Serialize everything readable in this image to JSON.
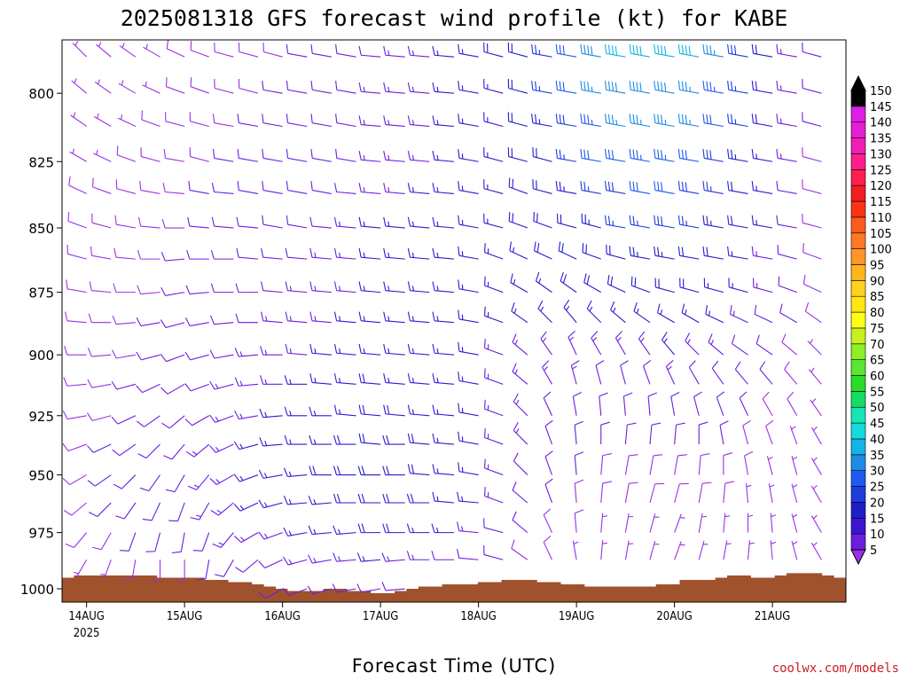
{
  "chart_data": {
    "type": "wind-barb time-height",
    "title": "2025081318 GFS forecast wind profile (kt) for KABE",
    "xlabel": "Forecast Time (UTC)",
    "ylabel": "",
    "credit": "coolwx.com/models",
    "x_ticks": [
      "14AUG",
      "15AUG",
      "16AUG",
      "17AUG",
      "18AUG",
      "19AUG",
      "20AUG",
      "21AUG"
    ],
    "x_subtick": "2025",
    "y_ticks": [
      800,
      825,
      850,
      875,
      900,
      925,
      950,
      975,
      1000
    ],
    "y_range_hpa": [
      781,
      1006
    ],
    "y_scale": "log-pressure",
    "x_range_hours": [
      -6,
      186
    ],
    "colorbar": {
      "levels": [
        5,
        10,
        15,
        20,
        25,
        30,
        35,
        40,
        45,
        50,
        55,
        60,
        65,
        70,
        75,
        80,
        85,
        90,
        95,
        100,
        105,
        110,
        115,
        120,
        125,
        130,
        135,
        140,
        145,
        150
      ],
      "colors": [
        "#9a30e8",
        "#6a1ee0",
        "#3c14d2",
        "#1e1ec8",
        "#1e3cdc",
        "#1e5af0",
        "#1e8ce6",
        "#14b4e6",
        "#14dcdc",
        "#14e6b4",
        "#14dc64",
        "#28dc28",
        "#5ae632",
        "#8cf028",
        "#c8f01e",
        "#ffff14",
        "#ffe614",
        "#ffd21e",
        "#ffb41e",
        "#ff9628",
        "#ff7828",
        "#ff5a1e",
        "#ff3214",
        "#f01e1e",
        "#ff1e50",
        "#ff1e8c",
        "#f01eb4",
        "#e61ed2",
        "#dc1ee6",
        "#000000"
      ]
    },
    "surface_pressure_hpa": [
      995,
      994,
      994,
      994,
      994,
      994,
      994,
      994,
      995,
      995,
      995,
      995,
      996,
      996,
      997,
      997,
      998,
      999,
      1000,
      1001,
      1001,
      1001,
      1000,
      1000,
      1001,
      1001,
      1002,
      1002,
      1001,
      1000,
      999,
      999,
      998,
      998,
      998,
      997,
      997,
      996,
      996,
      996,
      997,
      997,
      998,
      998,
      999,
      999,
      999,
      999,
      999,
      999,
      998,
      998,
      996,
      996,
      996,
      995,
      994,
      994,
      995,
      995,
      994,
      993,
      993,
      993,
      994,
      995
    ],
    "surface_time_range_hours": [
      -6,
      186
    ],
    "wind_columns_hours": [
      -6,
      0,
      6,
      12,
      18,
      24,
      30,
      36,
      42,
      48,
      54,
      60,
      66,
      72,
      78,
      84,
      90,
      96,
      102,
      108,
      114,
      120,
      126,
      132,
      138,
      144,
      150,
      156,
      162,
      168,
      174,
      180
    ],
    "wind_levels_hpa": [
      1000,
      987,
      975,
      962,
      950,
      937,
      925,
      912,
      900,
      887,
      875,
      862,
      850,
      837,
      825,
      812,
      800,
      787
    ],
    "wind_speed_kt": [
      [
        5,
        6,
        8,
        8,
        8,
        9,
        9,
        9,
        9,
        9,
        8,
        8,
        7,
        7,
        6,
        6,
        5,
        5
      ],
      [
        5,
        6,
        8,
        9,
        9,
        9,
        9,
        9,
        9,
        9,
        9,
        9,
        8,
        8,
        7,
        7,
        6,
        6
      ],
      [
        6,
        7,
        9,
        10,
        10,
        10,
        9,
        9,
        9,
        9,
        9,
        8,
        8,
        8,
        7,
        7,
        7,
        6
      ],
      [
        6,
        8,
        10,
        10,
        11,
        11,
        10,
        10,
        9,
        9,
        9,
        9,
        8,
        8,
        8,
        7,
        7,
        7
      ],
      [
        7,
        8,
        10,
        11,
        11,
        11,
        11,
        10,
        10,
        10,
        9,
        9,
        9,
        8,
        8,
        8,
        7,
        7
      ],
      [
        8,
        9,
        11,
        12,
        12,
        12,
        11,
        11,
        11,
        10,
        10,
        10,
        9,
        9,
        9,
        8,
        8,
        8
      ],
      [
        8,
        10,
        12,
        13,
        13,
        13,
        12,
        12,
        11,
        11,
        11,
        10,
        10,
        10,
        9,
        9,
        9,
        8
      ],
      [
        9,
        11,
        13,
        14,
        14,
        14,
        13,
        13,
        12,
        12,
        11,
        11,
        11,
        10,
        10,
        9,
        9,
        9
      ],
      [
        10,
        12,
        14,
        15,
        15,
        15,
        14,
        14,
        13,
        12,
        12,
        11,
        11,
        10,
        10,
        10,
        9,
        9
      ],
      [
        10,
        12,
        14,
        16,
        16,
        16,
        15,
        14,
        14,
        13,
        12,
        12,
        11,
        11,
        10,
        10,
        10,
        9
      ],
      [
        11,
        13,
        15,
        17,
        17,
        16,
        16,
        15,
        14,
        14,
        13,
        12,
        12,
        11,
        11,
        10,
        10,
        10
      ],
      [
        11,
        13,
        15,
        17,
        18,
        17,
        16,
        16,
        15,
        14,
        14,
        13,
        12,
        12,
        11,
        11,
        10,
        10
      ],
      [
        12,
        14,
        16,
        18,
        18,
        18,
        17,
        16,
        15,
        15,
        14,
        13,
        13,
        12,
        12,
        11,
        11,
        10
      ],
      [
        12,
        15,
        19,
        20,
        20,
        20,
        19,
        18,
        17,
        16,
        16,
        15,
        15,
        14,
        14,
        13,
        13,
        12
      ],
      [
        11,
        14,
        18,
        19,
        19,
        19,
        18,
        17,
        17,
        16,
        15,
        15,
        15,
        14,
        14,
        14,
        13,
        13
      ],
      [
        10,
        13,
        16,
        18,
        18,
        18,
        17,
        16,
        16,
        15,
        15,
        15,
        15,
        15,
        14,
        14,
        14,
        14
      ],
      [
        9,
        12,
        15,
        16,
        16,
        16,
        16,
        15,
        15,
        15,
        15,
        15,
        15,
        15,
        15,
        15,
        15,
        15
      ],
      [
        8,
        11,
        13,
        15,
        15,
        15,
        15,
        15,
        15,
        15,
        15,
        15,
        16,
        16,
        16,
        16,
        16,
        16
      ],
      [
        8,
        10,
        12,
        14,
        14,
        14,
        14,
        14,
        14,
        15,
        15,
        16,
        17,
        17,
        17,
        17,
        17,
        18
      ],
      [
        7,
        9,
        11,
        12,
        12,
        13,
        13,
        13,
        14,
        15,
        16,
        17,
        18,
        19,
        19,
        20,
        20,
        21
      ],
      [
        6,
        8,
        9,
        10,
        11,
        11,
        12,
        13,
        14,
        15,
        16,
        18,
        19,
        21,
        22,
        24,
        25,
        27
      ],
      [
        6,
        7,
        8,
        9,
        10,
        11,
        12,
        13,
        14,
        16,
        18,
        20,
        22,
        24,
        26,
        28,
        30,
        32
      ],
      [
        5,
        6,
        7,
        8,
        9,
        10,
        11,
        12,
        14,
        16,
        18,
        21,
        24,
        27,
        30,
        33,
        36,
        38
      ],
      [
        5,
        6,
        7,
        8,
        9,
        10,
        11,
        12,
        14,
        16,
        19,
        22,
        26,
        29,
        32,
        35,
        38,
        40
      ],
      [
        5,
        6,
        7,
        8,
        9,
        10,
        11,
        12,
        14,
        17,
        20,
        23,
        27,
        30,
        33,
        36,
        39,
        41
      ],
      [
        5,
        6,
        7,
        8,
        9,
        10,
        12,
        13,
        15,
        17,
        20,
        24,
        28,
        31,
        34,
        37,
        39,
        42
      ],
      [
        5,
        6,
        7,
        8,
        9,
        10,
        11,
        12,
        14,
        16,
        19,
        22,
        26,
        29,
        32,
        35,
        37,
        40
      ],
      [
        5,
        6,
        7,
        8,
        9,
        10,
        11,
        12,
        13,
        15,
        17,
        20,
        23,
        26,
        28,
        31,
        33,
        35
      ],
      [
        5,
        6,
        6,
        7,
        8,
        9,
        10,
        11,
        12,
        13,
        15,
        17,
        19,
        21,
        23,
        25,
        27,
        29
      ],
      [
        5,
        5,
        6,
        7,
        7,
        8,
        9,
        10,
        11,
        12,
        13,
        14,
        15,
        16,
        17,
        18,
        19,
        20
      ],
      [
        5,
        5,
        6,
        6,
        7,
        7,
        8,
        8,
        9,
        10,
        10,
        11,
        12,
        12,
        13,
        13,
        14,
        14
      ],
      [
        5,
        5,
        5,
        6,
        6,
        6,
        7,
        7,
        7,
        8,
        8,
        8,
        9,
        9,
        9,
        10,
        10,
        10
      ]
    ],
    "wind_dir_deg": [
      [
        210,
        220,
        230,
        240,
        250,
        255,
        260,
        265,
        270,
        275,
        280,
        285,
        290,
        295,
        300,
        305,
        310,
        315
      ],
      [
        200,
        210,
        220,
        230,
        240,
        250,
        260,
        265,
        270,
        275,
        280,
        285,
        290,
        295,
        300,
        305,
        310,
        315
      ],
      [
        190,
        200,
        210,
        225,
        235,
        245,
        255,
        260,
        265,
        270,
        275,
        280,
        285,
        290,
        295,
        300,
        305,
        310
      ],
      [
        180,
        190,
        200,
        215,
        225,
        235,
        245,
        255,
        260,
        265,
        270,
        275,
        280,
        285,
        290,
        295,
        300,
        305
      ],
      [
        170,
        180,
        195,
        205,
        215,
        225,
        235,
        245,
        255,
        260,
        265,
        270,
        275,
        280,
        285,
        290,
        295,
        300
      ],
      [
        170,
        180,
        190,
        200,
        210,
        220,
        230,
        240,
        250,
        255,
        260,
        265,
        270,
        275,
        280,
        285,
        290,
        295
      ],
      [
        180,
        190,
        200,
        210,
        220,
        230,
        240,
        250,
        255,
        260,
        265,
        270,
        275,
        280,
        285,
        285,
        290,
        290
      ],
      [
        200,
        210,
        220,
        230,
        240,
        245,
        250,
        255,
        260,
        265,
        270,
        270,
        275,
        275,
        280,
        280,
        285,
        285
      ],
      [
        220,
        230,
        240,
        245,
        250,
        255,
        260,
        265,
        265,
        270,
        270,
        275,
        275,
        280,
        280,
        280,
        285,
        285
      ],
      [
        240,
        245,
        250,
        255,
        260,
        265,
        265,
        270,
        270,
        275,
        275,
        275,
        280,
        280,
        280,
        280,
        280,
        285
      ],
      [
        250,
        255,
        260,
        265,
        265,
        270,
        270,
        270,
        275,
        275,
        275,
        275,
        280,
        280,
        280,
        280,
        280,
        280
      ],
      [
        255,
        260,
        265,
        265,
        270,
        270,
        270,
        275,
        275,
        275,
        275,
        275,
        275,
        280,
        280,
        280,
        280,
        280
      ],
      [
        260,
        265,
        265,
        270,
        270,
        270,
        275,
        275,
        275,
        275,
        275,
        275,
        275,
        275,
        280,
        280,
        280,
        280
      ],
      [
        260,
        265,
        270,
        270,
        270,
        275,
        275,
        275,
        275,
        275,
        275,
        275,
        275,
        275,
        275,
        275,
        275,
        275
      ],
      [
        265,
        265,
        270,
        270,
        270,
        270,
        275,
        275,
        275,
        275,
        275,
        275,
        275,
        275,
        275,
        275,
        275,
        275
      ],
      [
        265,
        270,
        270,
        270,
        275,
        275,
        275,
        275,
        275,
        275,
        275,
        275,
        275,
        275,
        275,
        275,
        275,
        275
      ],
      [
        270,
        270,
        270,
        275,
        275,
        275,
        275,
        275,
        275,
        275,
        275,
        275,
        275,
        275,
        275,
        275,
        275,
        275
      ],
      [
        270,
        275,
        275,
        275,
        280,
        280,
        280,
        280,
        280,
        280,
        280,
        280,
        280,
        280,
        280,
        280,
        280,
        280
      ],
      [
        280,
        285,
        285,
        290,
        290,
        290,
        290,
        290,
        290,
        290,
        290,
        290,
        285,
        285,
        285,
        285,
        285,
        285
      ],
      [
        300,
        305,
        310,
        310,
        315,
        315,
        315,
        310,
        310,
        305,
        300,
        295,
        290,
        290,
        285,
        285,
        285,
        285
      ],
      [
        330,
        335,
        335,
        340,
        340,
        340,
        335,
        330,
        325,
        315,
        305,
        295,
        290,
        285,
        285,
        280,
        280,
        280
      ],
      [
        350,
        350,
        355,
        355,
        355,
        355,
        350,
        345,
        335,
        320,
        305,
        295,
        285,
        280,
        280,
        280,
        280,
        280
      ],
      [
        0,
        5,
        5,
        5,
        5,
        0,
        355,
        345,
        330,
        315,
        300,
        290,
        285,
        280,
        280,
        280,
        280,
        280
      ],
      [
        10,
        10,
        10,
        10,
        10,
        5,
        355,
        345,
        330,
        310,
        295,
        285,
        280,
        280,
        280,
        280,
        280,
        280
      ],
      [
        15,
        15,
        15,
        15,
        10,
        5,
        355,
        340,
        325,
        305,
        290,
        280,
        280,
        280,
        280,
        280,
        280,
        280
      ],
      [
        20,
        20,
        20,
        15,
        10,
        5,
        350,
        335,
        320,
        300,
        285,
        280,
        280,
        280,
        280,
        280,
        280,
        280
      ],
      [
        15,
        15,
        10,
        10,
        5,
        0,
        345,
        330,
        315,
        300,
        285,
        280,
        280,
        280,
        280,
        280,
        280,
        280
      ],
      [
        10,
        10,
        5,
        5,
        0,
        350,
        340,
        325,
        310,
        295,
        285,
        280,
        280,
        280,
        280,
        280,
        280,
        280
      ],
      [
        5,
        5,
        0,
        355,
        350,
        345,
        335,
        320,
        305,
        295,
        285,
        280,
        280,
        280,
        280,
        280,
        280,
        280
      ],
      [
        0,
        355,
        355,
        350,
        345,
        340,
        330,
        320,
        305,
        295,
        285,
        280,
        280,
        280,
        280,
        280,
        280,
        280
      ],
      [
        345,
        345,
        345,
        345,
        345,
        340,
        330,
        320,
        310,
        300,
        290,
        285,
        280,
        280,
        280,
        280,
        280,
        280
      ],
      [
        330,
        330,
        330,
        330,
        330,
        330,
        325,
        320,
        315,
        305,
        295,
        290,
        285,
        285,
        285,
        285,
        285,
        285
      ]
    ]
  }
}
